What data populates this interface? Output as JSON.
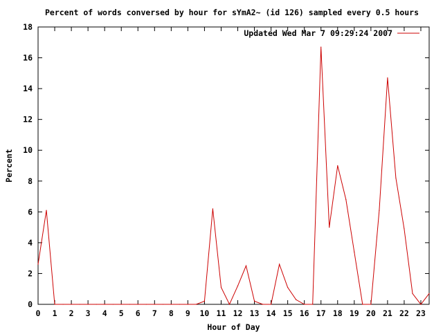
{
  "chart_data": {
    "type": "line",
    "title": "Percent of words conversed by hour for sYmA2~ (id 126) sampled every 0.5 hours",
    "xlabel": "Hour of Day",
    "ylabel": "Percent",
    "xlim": [
      0,
      23.5
    ],
    "ylim": [
      0,
      18
    ],
    "xticks": [
      0,
      1,
      2,
      3,
      4,
      5,
      6,
      7,
      8,
      9,
      10,
      11,
      12,
      13,
      14,
      15,
      16,
      17,
      18,
      19,
      20,
      21,
      22,
      23
    ],
    "yticks": [
      0,
      2,
      4,
      6,
      8,
      10,
      12,
      14,
      16,
      18
    ],
    "grid": false,
    "legend_position": "top-right",
    "series": [
      {
        "name": "Updated Wed Mar  7 09:29:24 2007",
        "color": "#cc0000",
        "x": [
          0,
          0.5,
          1,
          1.5,
          2,
          2.5,
          3,
          3.5,
          4,
          4.5,
          5,
          5.5,
          6,
          6.5,
          7,
          7.5,
          8,
          8.5,
          9,
          9.5,
          10,
          10.5,
          11,
          11.5,
          12,
          12.5,
          13,
          13.5,
          14,
          14.5,
          15,
          15.5,
          16,
          16.5,
          17,
          17.5,
          18,
          18.5,
          19,
          19.5,
          20,
          20.5,
          21,
          21.5,
          22,
          22.5,
          23,
          23.5
        ],
        "y": [
          2.6,
          6.1,
          0,
          0,
          0,
          0,
          0,
          0,
          0,
          0,
          0,
          0,
          0,
          0,
          0,
          0,
          0,
          0,
          0,
          0,
          0.2,
          6.2,
          1.1,
          0,
          1.2,
          2.5,
          0.2,
          0,
          0,
          2.6,
          1.1,
          0.3,
          0,
          0,
          16.7,
          5,
          9,
          6.8,
          3.4,
          0,
          0,
          6.1,
          14.7,
          8.2,
          4.9,
          0.7,
          0,
          0.7
        ]
      }
    ]
  }
}
